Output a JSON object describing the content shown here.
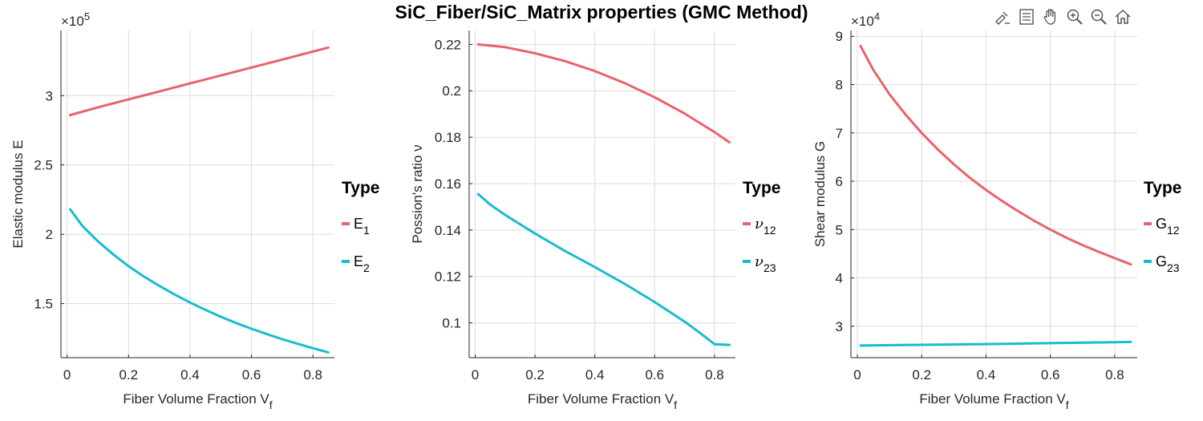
{
  "figure": {
    "title": "SiC_Fiber/SiC_Matrix properties (GMC Method)"
  },
  "toolbar": {
    "icons": [
      "data-tips-brush-icon",
      "insert-legend-icon",
      "pan-hand-icon",
      "zoom-in-icon",
      "zoom-out-icon",
      "home-restore-icon"
    ]
  },
  "colors": {
    "series1": "#e8636c",
    "series2": "#17bcd0",
    "grid": "#dcdcdc",
    "axis": "#262626"
  },
  "chart_data": [
    {
      "type": "line",
      "title": "",
      "xlabel": "Fiber Volume Fraction V",
      "xlabel_sub": "f",
      "ylabel": "Elastic modulus E",
      "exponent_label": "×10",
      "exponent_power": "5",
      "xlim": [
        -0.02,
        0.87
      ],
      "ylim": [
        1.11,
        3.47
      ],
      "xticks": [
        0,
        0.2,
        0.4,
        0.6,
        0.8
      ],
      "xtick_labels": [
        "0",
        "0.2",
        "0.4",
        "0.6",
        "0.8"
      ],
      "yticks": [
        1.5,
        2,
        2.5,
        3
      ],
      "ytick_labels": [
        "1.5",
        "2",
        "2.5",
        "3"
      ],
      "grid": true,
      "legend": {
        "title": "Type",
        "placement": "right"
      },
      "series": [
        {
          "name": "E",
          "name_sub": "1",
          "x": [
            0.01,
            0.1,
            0.2,
            0.3,
            0.4,
            0.5,
            0.6,
            0.7,
            0.8,
            0.85
          ],
          "values": [
            2.86,
            2.915,
            2.973,
            3.03,
            3.088,
            3.145,
            3.203,
            3.26,
            3.318,
            3.347
          ]
        },
        {
          "name": "E",
          "name_sub": "2",
          "x": [
            0.01,
            0.05,
            0.1,
            0.15,
            0.2,
            0.25,
            0.3,
            0.35,
            0.4,
            0.45,
            0.5,
            0.55,
            0.6,
            0.65,
            0.7,
            0.75,
            0.8,
            0.85
          ],
          "values": [
            2.18,
            2.06,
            1.95,
            1.855,
            1.77,
            1.695,
            1.628,
            1.565,
            1.508,
            1.455,
            1.405,
            1.36,
            1.318,
            1.28,
            1.243,
            1.21,
            1.178,
            1.148
          ]
        }
      ]
    },
    {
      "type": "line",
      "title": "",
      "xlabel": "Fiber Volume Fraction V",
      "xlabel_sub": "f",
      "ylabel": "Possion's ratio ν",
      "xlim": [
        -0.02,
        0.87
      ],
      "ylim": [
        0.085,
        0.226
      ],
      "xticks": [
        0,
        0.2,
        0.4,
        0.6,
        0.8
      ],
      "xtick_labels": [
        "0",
        "0.2",
        "0.4",
        "0.6",
        "0.8"
      ],
      "yticks": [
        0.1,
        0.12,
        0.14,
        0.16,
        0.18,
        0.2,
        0.22
      ],
      "ytick_labels": [
        "0.1",
        "0.12",
        "0.14",
        "0.16",
        "0.18",
        "0.2",
        "0.22"
      ],
      "grid": true,
      "legend": {
        "title": "Type",
        "placement": "right"
      },
      "series": [
        {
          "name": "ν",
          "name_sub": "12",
          "x": [
            0.01,
            0.1,
            0.2,
            0.3,
            0.4,
            0.5,
            0.6,
            0.7,
            0.8,
            0.85
          ],
          "values": [
            0.22,
            0.2188,
            0.2162,
            0.2128,
            0.2085,
            0.2033,
            0.1972,
            0.1902,
            0.1822,
            0.1778
          ]
        },
        {
          "name": "ν",
          "name_sub": "23",
          "x": [
            0.01,
            0.05,
            0.1,
            0.2,
            0.3,
            0.4,
            0.5,
            0.6,
            0.7,
            0.75,
            0.8,
            0.85
          ],
          "values": [
            0.1555,
            0.151,
            0.1465,
            0.1385,
            0.131,
            0.124,
            0.1168,
            0.109,
            0.1005,
            0.0958,
            0.0908,
            0.0905
          ]
        }
      ]
    },
    {
      "type": "line",
      "title": "",
      "xlabel": "Fiber Volume Fraction V",
      "xlabel_sub": "f",
      "ylabel": "Shear modulus G",
      "exponent_label": "×10",
      "exponent_power": "4",
      "xlim": [
        -0.02,
        0.87
      ],
      "ylim": [
        2.35,
        9.12
      ],
      "xticks": [
        0,
        0.2,
        0.4,
        0.6,
        0.8
      ],
      "xtick_labels": [
        "0",
        "0.2",
        "0.4",
        "0.6",
        "0.8"
      ],
      "yticks": [
        3,
        4,
        5,
        6,
        7,
        8,
        9
      ],
      "ytick_labels": [
        "3",
        "4",
        "5",
        "6",
        "7",
        "8",
        "9"
      ],
      "grid": true,
      "legend": {
        "title": "Type",
        "placement": "right"
      },
      "series": [
        {
          "name": "G",
          "name_sub": "12",
          "x": [
            0.01,
            0.05,
            0.1,
            0.15,
            0.2,
            0.25,
            0.3,
            0.35,
            0.4,
            0.45,
            0.5,
            0.55,
            0.6,
            0.65,
            0.7,
            0.75,
            0.8,
            0.85
          ],
          "values": [
            8.8,
            8.3,
            7.8,
            7.38,
            7.0,
            6.66,
            6.35,
            6.07,
            5.82,
            5.59,
            5.38,
            5.18,
            5.0,
            4.83,
            4.68,
            4.54,
            4.41,
            4.28
          ]
        },
        {
          "name": "G",
          "name_sub": "23",
          "x": [
            0.01,
            0.2,
            0.4,
            0.6,
            0.85
          ],
          "values": [
            2.6,
            2.615,
            2.63,
            2.65,
            2.675
          ]
        }
      ]
    }
  ]
}
